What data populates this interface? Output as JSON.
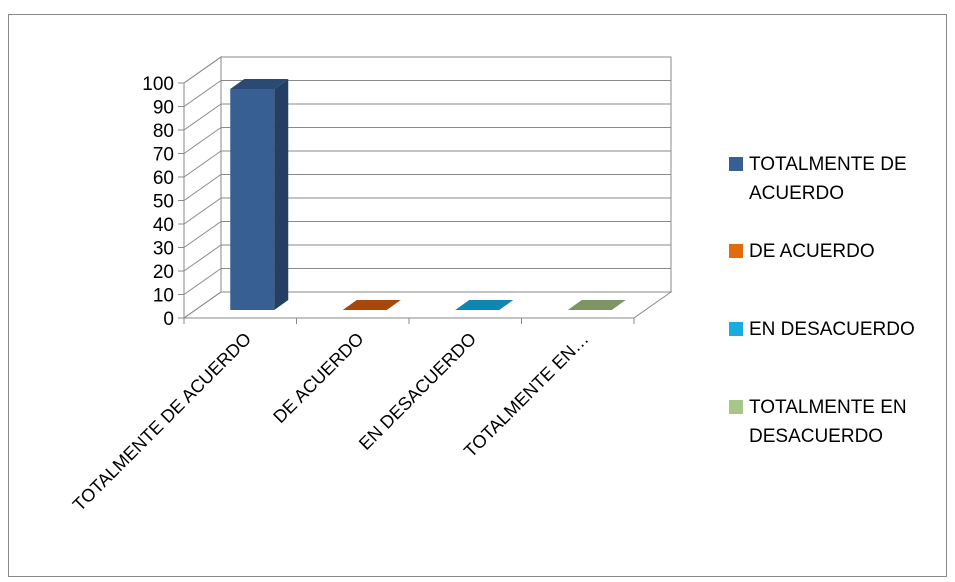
{
  "chart_data": {
    "type": "bar",
    "three_d": true,
    "categories": [
      "TOTALMENTE DE ACUERDO",
      "DE ACUERDO",
      "EN DESACUERDO",
      "TOTALMENTE EN…"
    ],
    "values": [
      100,
      0,
      0,
      0
    ],
    "ylim": [
      0,
      100
    ],
    "yticks": [
      0,
      10,
      20,
      30,
      40,
      50,
      60,
      70,
      80,
      90,
      100
    ],
    "grid": true,
    "legend_position": "right",
    "legend": [
      {
        "lines": [
          "TOTALMENTE DE",
          "ACUERDO"
        ],
        "color": "#375f93"
      },
      {
        "lines": [
          "DE ACUERDO"
        ],
        "color": "#e26b0a"
      },
      {
        "lines": [
          "EN DESACUERDO"
        ],
        "color": "#1aace0"
      },
      {
        "lines": [
          "TOTALMENTE EN",
          "DESACUERDO"
        ],
        "color": "#a9c68a"
      }
    ],
    "colors": {
      "front": [
        "#375f93",
        "#c0510a",
        "#1197c8",
        "#8fa872"
      ],
      "side": [
        "#243f63",
        "#8f3c07",
        "#0c7196",
        "#6a7e54"
      ],
      "top": [
        "#2a4a74",
        "#a84808",
        "#0e86b3",
        "#7d9563"
      ]
    }
  }
}
